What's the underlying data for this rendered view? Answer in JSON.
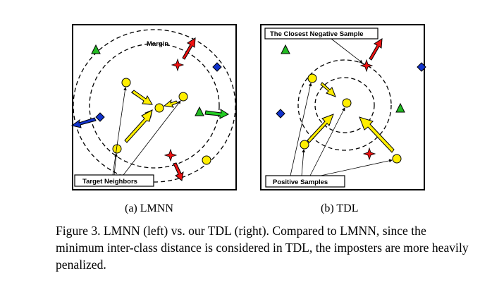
{
  "figure": {
    "panel_a": {
      "labels": {
        "margin": "Margin",
        "target_neighbors": "Target Neighbors"
      }
    },
    "panel_b": {
      "labels": {
        "closest_negative": "The Closest Negative Sample",
        "positive_samples": "Positive Samples"
      }
    },
    "subcaption_a": "(a) LMNN",
    "subcaption_b": "(b) TDL",
    "caption": "Figure 3. LMNN (left) vs. our TDL (right). Compared to LMNN, since the minimum inter-class distance is considered in TDL, the imposters are more heavily penalized.",
    "colors": {
      "circle_fill": "#ffee00",
      "triangle_fill": "#22bb22",
      "diamond_fill": "#1133cc",
      "star_fill": "#ee1111",
      "yellow_arrow": "#ffee00",
      "red_arrow": "#ee1111",
      "blue_arrow": "#1133cc",
      "green_arrow": "#22cc22"
    }
  }
}
